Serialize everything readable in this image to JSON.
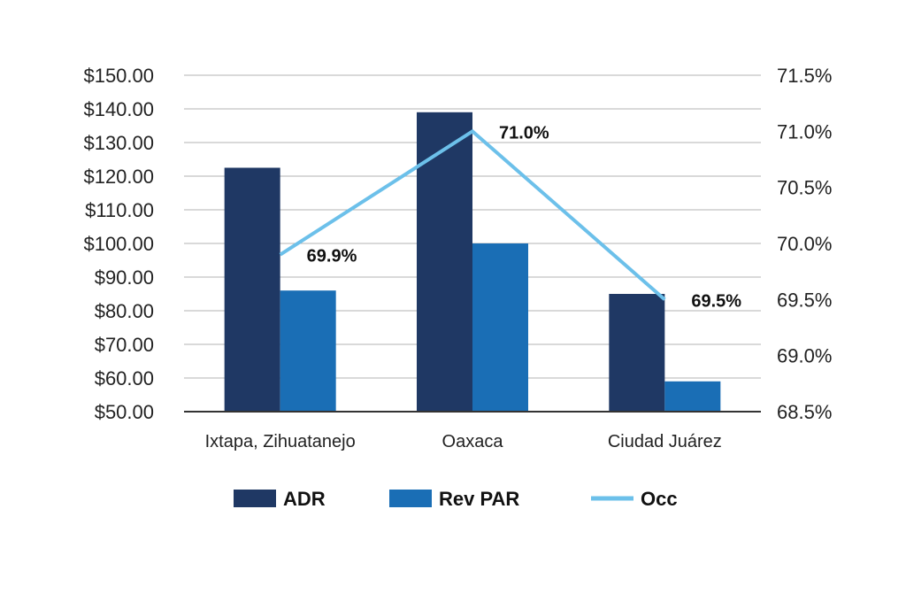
{
  "chart_data": {
    "type": "bar",
    "title": "",
    "categories": [
      "Ixtapa, Zihuatanejo",
      "Oaxaca",
      "Ciudad Juárez"
    ],
    "series": [
      {
        "name": "ADR",
        "type": "bar",
        "axis": "left",
        "values": [
          122.5,
          139.0,
          85.0
        ]
      },
      {
        "name": "Rev PAR",
        "type": "bar",
        "axis": "left",
        "values": [
          86.0,
          100.0,
          59.0
        ]
      },
      {
        "name": "Occ",
        "type": "line",
        "axis": "right",
        "values": [
          69.9,
          71.0,
          69.5
        ],
        "labels": [
          "69.9%",
          "71.0%",
          "69.5%"
        ]
      }
    ],
    "y_left": {
      "range": [
        50,
        150
      ],
      "ticks": [
        "$150.00",
        "$140.00",
        "$130.00",
        "$120.00",
        "$110.00",
        "$100.00",
        "$90.00",
        "$80.00",
        "$70.00",
        "$60.00",
        "$50.00"
      ]
    },
    "y_right": {
      "range": [
        68.5,
        71.5
      ],
      "ticks": [
        "71.5%",
        "71.0%",
        "70.5%",
        "70.0%",
        "69.5%",
        "69.0%",
        "68.5%"
      ]
    },
    "grid": true,
    "legend_position": "bottom",
    "colors": {
      "ADR": "#1f3864",
      "Rev PAR": "#1a6eb5",
      "Occ": "#6cc0ea",
      "grid": "#b3b3b3",
      "axis": "#333333"
    }
  }
}
